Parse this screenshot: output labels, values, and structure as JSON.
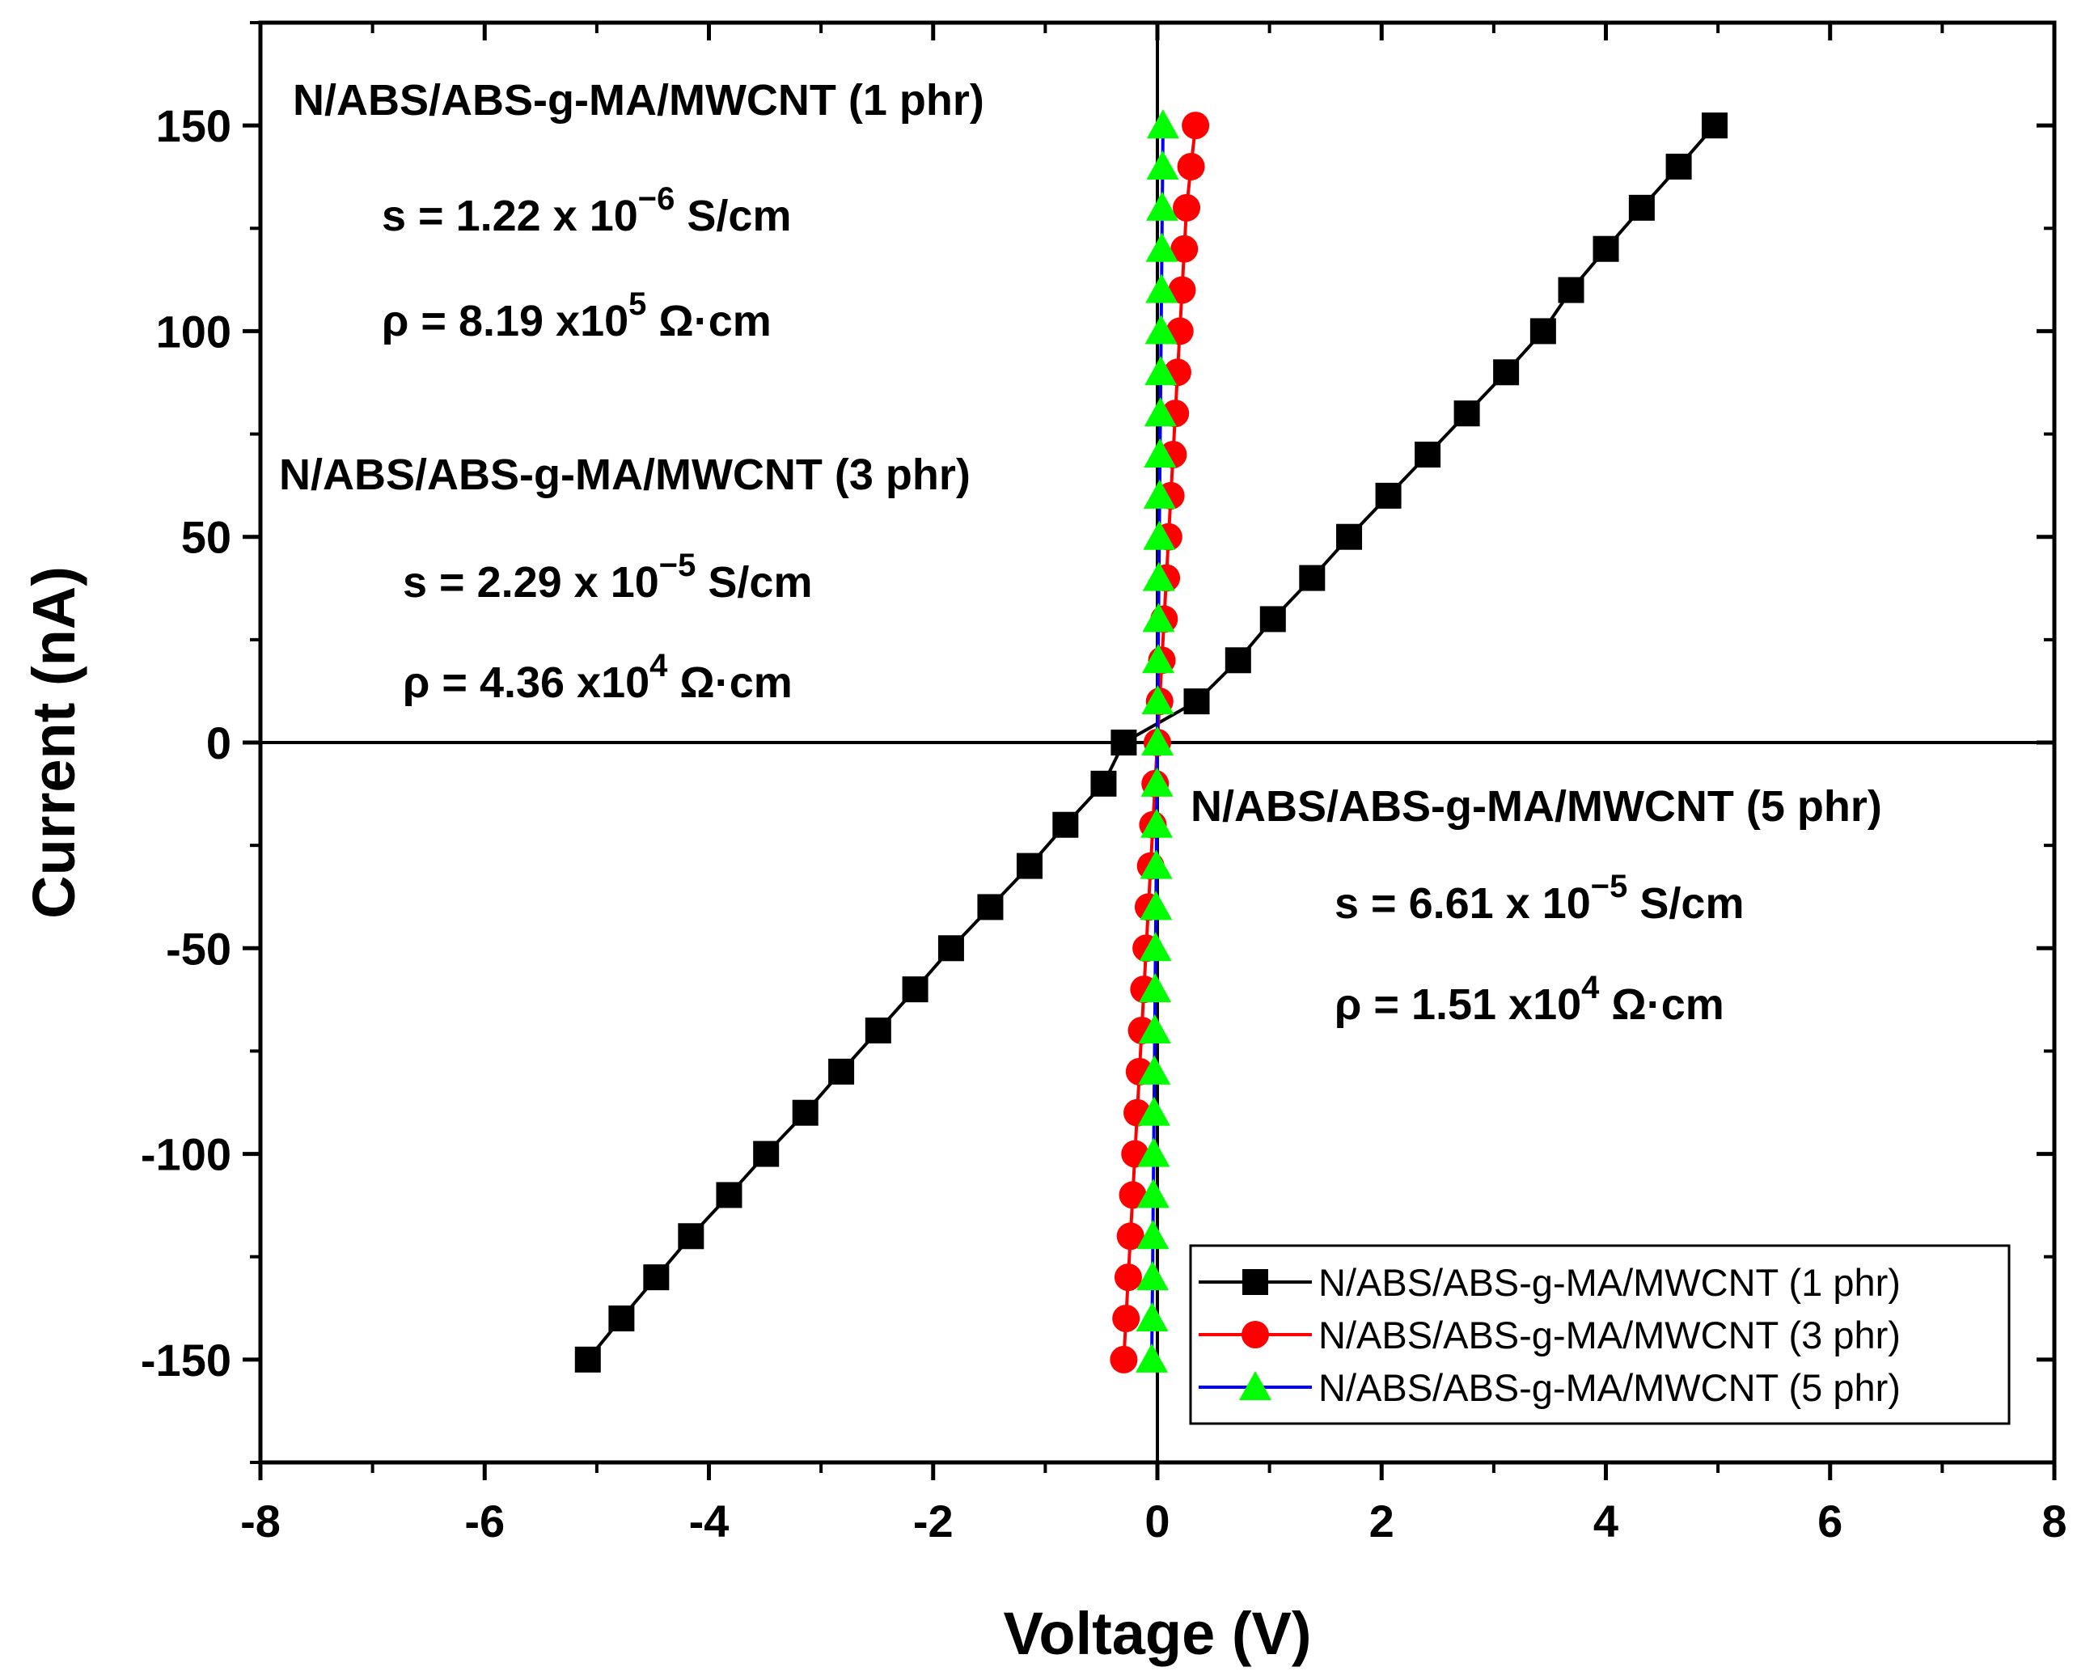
{
  "chart_data": {
    "type": "line",
    "title": "",
    "xlabel": "Voltage (V)",
    "ylabel": "Current (nA)",
    "xlim": [
      -8,
      8
    ],
    "ylim": [
      -175,
      175
    ],
    "xticks": [
      -8,
      -6,
      -4,
      -2,
      0,
      2,
      4,
      6,
      8
    ],
    "xtick_labels": [
      "-8",
      "-6",
      "-4",
      "-2",
      "0",
      "2",
      "4",
      "6",
      "8"
    ],
    "yticks": [
      -150,
      -100,
      -50,
      0,
      50,
      100,
      150
    ],
    "ytick_labels": [
      "-150",
      "-100",
      "-50",
      "0",
      "50",
      "100",
      "150"
    ],
    "legend": "bottom-right",
    "series": [
      {
        "name": "N/ABS/ABS-g-MA/MWCNT (1 phr)",
        "color": "#000000",
        "marker": "square",
        "x": [
          -5.08,
          -4.78,
          -4.47,
          -4.16,
          -3.82,
          -3.49,
          -3.14,
          -2.82,
          -2.49,
          -2.16,
          -1.84,
          -1.49,
          -1.14,
          -0.82,
          -0.48,
          -0.3,
          0.35,
          0.72,
          1.03,
          1.38,
          1.71,
          2.06,
          2.41,
          2.76,
          3.11,
          3.44,
          3.69,
          4.0,
          4.32,
          4.65,
          4.97
        ],
        "y": [
          -150,
          -140,
          -130,
          -120,
          -110,
          -100,
          -90,
          -80,
          -70,
          -60,
          -50,
          -40,
          -30,
          -20,
          -10,
          0,
          10,
          20,
          30,
          40,
          50,
          60,
          70,
          80,
          90,
          100,
          110,
          120,
          130,
          140,
          150
        ]
      },
      {
        "name": "N/ABS/ABS-g-MA/MWCNT (3 phr)",
        "color": "#ff0000",
        "marker": "circle",
        "x": [
          -0.3,
          -0.28,
          -0.26,
          -0.24,
          -0.22,
          -0.2,
          -0.18,
          -0.16,
          -0.14,
          -0.12,
          -0.1,
          -0.08,
          -0.06,
          -0.04,
          -0.02,
          0.0,
          0.02,
          0.04,
          0.06,
          0.08,
          0.1,
          0.12,
          0.14,
          0.16,
          0.18,
          0.2,
          0.22,
          0.24,
          0.26,
          0.3,
          0.34
        ],
        "y": [
          -150,
          -140,
          -130,
          -120,
          -110,
          -100,
          -90,
          -80,
          -70,
          -60,
          -50,
          -40,
          -30,
          -20,
          -10,
          0,
          10,
          20,
          30,
          40,
          50,
          60,
          70,
          80,
          90,
          100,
          110,
          120,
          130,
          140,
          150
        ]
      },
      {
        "name": "N/ABS/ABS-g-MA/MWCNT (5 phr)",
        "color": "#00ff00",
        "line_color": "#0000ff",
        "marker": "triangle",
        "x": [
          -0.05,
          -0.047,
          -0.043,
          -0.04,
          -0.037,
          -0.033,
          -0.03,
          -0.027,
          -0.023,
          -0.02,
          -0.017,
          -0.013,
          -0.01,
          -0.007,
          -0.003,
          0.0,
          0.003,
          0.007,
          0.01,
          0.013,
          0.017,
          0.02,
          0.023,
          0.027,
          0.03,
          0.033,
          0.037,
          0.04,
          0.043,
          0.047,
          0.05
        ],
        "y": [
          -150,
          -140,
          -130,
          -120,
          -110,
          -100,
          -90,
          -80,
          -70,
          -60,
          -50,
          -40,
          -30,
          -20,
          -10,
          0,
          10,
          20,
          30,
          40,
          50,
          60,
          70,
          80,
          90,
          100,
          110,
          120,
          130,
          140,
          150
        ]
      }
    ],
    "annotations": [
      {
        "title": "N/ABS/ABS-g-MA/MWCNT (1 phr)",
        "sigma_base": "s = 1.22 x 10",
        "sigma_exp": "−6",
        "sigma_unit": "S/cm",
        "rho_base": "ρ = 8.19 x10",
        "rho_exp": "5",
        "rho_unit": "Ω·cm"
      },
      {
        "title": "N/ABS/ABS-g-MA/MWCNT (3 phr)",
        "sigma_base": "s = 2.29 x 10",
        "sigma_exp": "−5",
        "sigma_unit": "S/cm",
        "rho_base": "ρ = 4.36 x10",
        "rho_exp": "4",
        "rho_unit": "Ω·cm"
      },
      {
        "title": "N/ABS/ABS-g-MA/MWCNT (5 phr)",
        "sigma_base": "s = 6.61 x 10",
        "sigma_exp": "−5",
        "sigma_unit": "S/cm",
        "rho_base": "ρ = 1.51 x10",
        "rho_exp": "4",
        "rho_unit": "Ω·cm"
      }
    ]
  }
}
